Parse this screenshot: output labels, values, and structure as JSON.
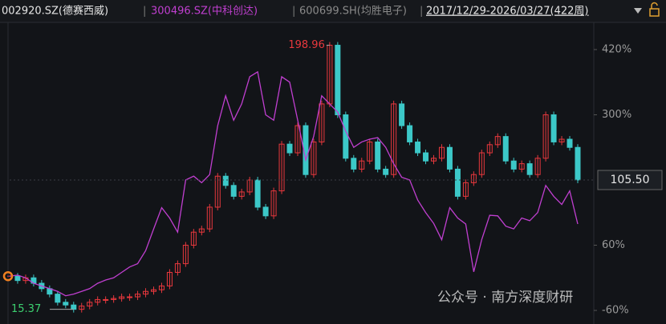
{
  "header": {
    "items": [
      "002920.SZ(德赛西威)",
      "300496.SZ(中科创达)",
      "600699.SH(均胜电子)"
    ],
    "range": "2017/12/29-2026/03/27(422周)"
  },
  "watermark": "公众号 · 南方深度财研",
  "chart_data": {
    "type": "line",
    "ylim": [
      -85,
      470
    ],
    "yticks": [
      {
        "value": -60,
        "label": "-60%"
      },
      {
        "value": 60,
        "label": "60%"
      },
      {
        "value": 300,
        "label": "300%"
      },
      {
        "value": 420,
        "label": "420%"
      }
    ],
    "high_label": "198.96",
    "low_label": "15.37",
    "last_label": "105.50",
    "series": [
      {
        "name": "002920.SZ(德赛西威)",
        "style": "candles",
        "up_color": "#e8383d",
        "down_color": "#3cc8c8",
        "values": [
          3,
          -5,
          0,
          -10,
          -20,
          -30,
          -45,
          -50,
          -58,
          -52,
          -45,
          -40,
          -40,
          -38,
          -35,
          -35,
          -30,
          -25,
          -22,
          -15,
          10,
          26,
          60,
          84,
          90,
          130,
          187,
          170,
          150,
          158,
          180,
          130,
          114,
          160,
          246,
          230,
          280,
          190,
          250,
          320,
          428,
          300,
          220,
          200,
          215,
          250,
          200,
          190,
          320,
          280,
          250,
          230,
          215,
          220,
          240,
          200,
          150,
          175,
          190,
          230,
          245,
          260,
          215,
          200,
          210,
          190,
          220,
          300,
          250,
          255,
          240,
          180
        ]
      },
      {
        "name": "300496.SZ(中科创达)",
        "style": "line",
        "color": "#c03fd0",
        "values": [
          3,
          5,
          0,
          -10,
          -15,
          -20,
          -25,
          -33,
          -30,
          -25,
          -20,
          -10,
          -4,
          0,
          10,
          20,
          26,
          50,
          90,
          129,
          110,
          84,
          180,
          187,
          175,
          190,
          280,
          335,
          290,
          320,
          370,
          379,
          300,
          290,
          370,
          360,
          290,
          217,
          260,
          335,
          320,
          305,
          270,
          240,
          250,
          255,
          258,
          240,
          210,
          185,
          180,
          143,
          120,
          100,
          70,
          129,
          110,
          99,
          11,
          70,
          115,
          114,
          95,
          90,
          110,
          105,
          120,
          170,
          150,
          135,
          160,
          99
        ]
      }
    ]
  }
}
